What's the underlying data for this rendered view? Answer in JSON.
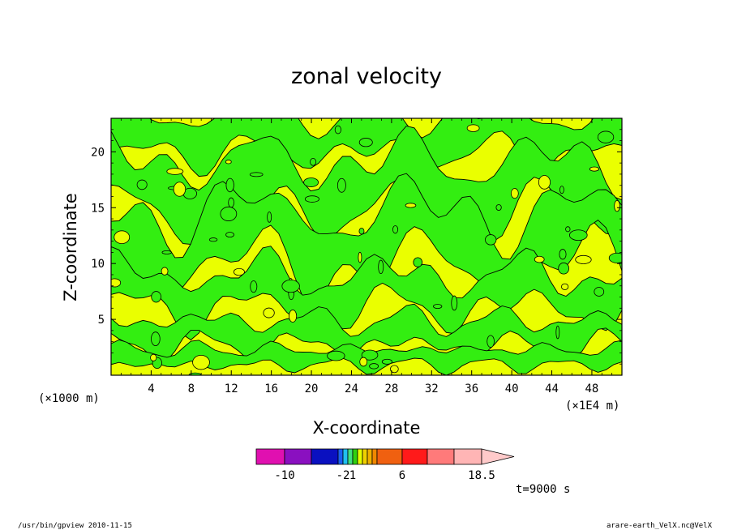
{
  "chart_data": {
    "type": "heatmap",
    "title": "zonal velocity",
    "xlabel": "X-coordinate",
    "ylabel": "Z-coordinate",
    "x_scale_label": "(×1E4 m)",
    "y_scale_label": "(×1000 m)",
    "xlim": [
      0,
      51
    ],
    "ylim": [
      0,
      23
    ],
    "xticks": [
      4,
      8,
      12,
      16,
      20,
      24,
      28,
      32,
      36,
      40,
      44,
      48
    ],
    "yticks": [
      5,
      10,
      15,
      20
    ],
    "colorbar": {
      "colors": [
        "#e010b0",
        "#8a10c0",
        "#0a10c0",
        "#1a60f0",
        "#20c0f0",
        "#40e080",
        "#30d010",
        "#e6ff00",
        "#f0d000",
        "#f0b000",
        "#f08800",
        "#f06010",
        "#ff1a1a",
        "#ff7a7a",
        "#ffb5b5",
        "#ffcaca"
      ],
      "tick_labels": [
        "-10",
        "-2",
        "1",
        "6",
        "18.5"
      ],
      "tick_values": [
        -10,
        -2,
        1,
        6,
        18.5
      ]
    },
    "regions": [
      {
        "name": "green",
        "color": "#33ee11",
        "approx_range": "-1 to 0"
      },
      {
        "name": "yellow",
        "color": "#eaff00",
        "approx_range": "0 to 1"
      }
    ]
  },
  "time_label": "t=9000 s",
  "footer_left": "/usr/bin/gpview   2010-11-15",
  "footer_right": "arare-earth_VelX.nc@VelX"
}
